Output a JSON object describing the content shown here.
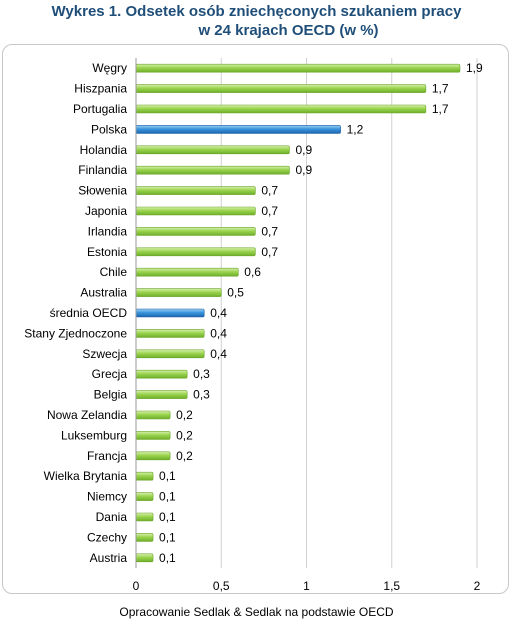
{
  "chart_data": {
    "type": "bar",
    "orientation": "horizontal",
    "title": "Wykres 1. Odsetek osób zniechęconych szukaniem pracy",
    "subtitle": "w 24 krajach OECD  (w %)",
    "categories": [
      "Węgry",
      "Hiszpania",
      "Portugalia",
      "Polska",
      "Holandia",
      "Finlandia",
      "Słowenia",
      "Japonia",
      "Irlandia",
      "Estonia",
      "Chile",
      "Australia",
      "średnia OECD",
      "Stany Zjednoczone",
      "Szwecja",
      "Grecja",
      "Belgia",
      "Nowa Zelandia",
      "Luksemburg",
      "Francja",
      "Wielka Brytania",
      "Niemcy",
      "Dania",
      "Czechy",
      "Austria"
    ],
    "values": [
      1.9,
      1.7,
      1.7,
      1.2,
      0.9,
      0.9,
      0.7,
      0.7,
      0.7,
      0.7,
      0.6,
      0.5,
      0.4,
      0.4,
      0.4,
      0.3,
      0.3,
      0.2,
      0.2,
      0.2,
      0.1,
      0.1,
      0.1,
      0.1,
      0.1
    ],
    "value_labels": [
      "1,9",
      "1,7",
      "1,7",
      "1,2",
      "0,9",
      "0,9",
      "0,7",
      "0,7",
      "0,7",
      "0,7",
      "0,6",
      "0,5",
      "0,4",
      "0,4",
      "0,4",
      "0,3",
      "0,3",
      "0,2",
      "0,2",
      "0,2",
      "0,1",
      "0,1",
      "0,1",
      "0,1",
      "0,1"
    ],
    "highlighted": [
      "Polska",
      "średnia OECD"
    ],
    "xlim": [
      0,
      2
    ],
    "xticks": [
      0,
      0.5,
      1,
      1.5,
      2
    ],
    "xtick_labels": [
      "0",
      "0,5",
      "1",
      "1,5",
      "2"
    ],
    "grid": "vertical",
    "legend": "none",
    "colors": {
      "bar": "#92D050",
      "highlight": "#2E8BD6",
      "grid": "#d0d0d0"
    }
  },
  "source": "Opracowanie Sedlak & Sedlak na podstawie OECD"
}
